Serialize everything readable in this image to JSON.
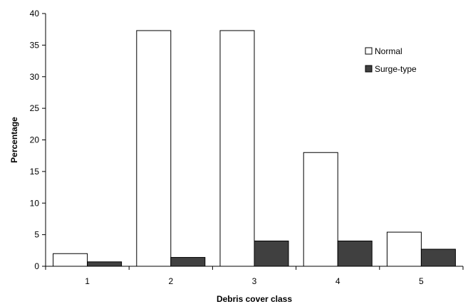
{
  "chart_data": {
    "type": "bar",
    "title": "",
    "xlabel": "Debris cover class",
    "ylabel": "Percentage",
    "categories": [
      "1",
      "2",
      "3",
      "4",
      "5"
    ],
    "series": [
      {
        "name": "Normal",
        "values": [
          2.0,
          37.3,
          37.3,
          18.0,
          5.4
        ],
        "color": "#ffffff"
      },
      {
        "name": "Surge-type",
        "values": [
          0.7,
          1.4,
          4.0,
          4.0,
          2.7
        ],
        "color": "#404040"
      }
    ],
    "ylim": [
      0,
      40
    ],
    "yticks": [
      0,
      5,
      10,
      15,
      20,
      25,
      30,
      35,
      40
    ],
    "grid": false,
    "legend": "top-right"
  }
}
